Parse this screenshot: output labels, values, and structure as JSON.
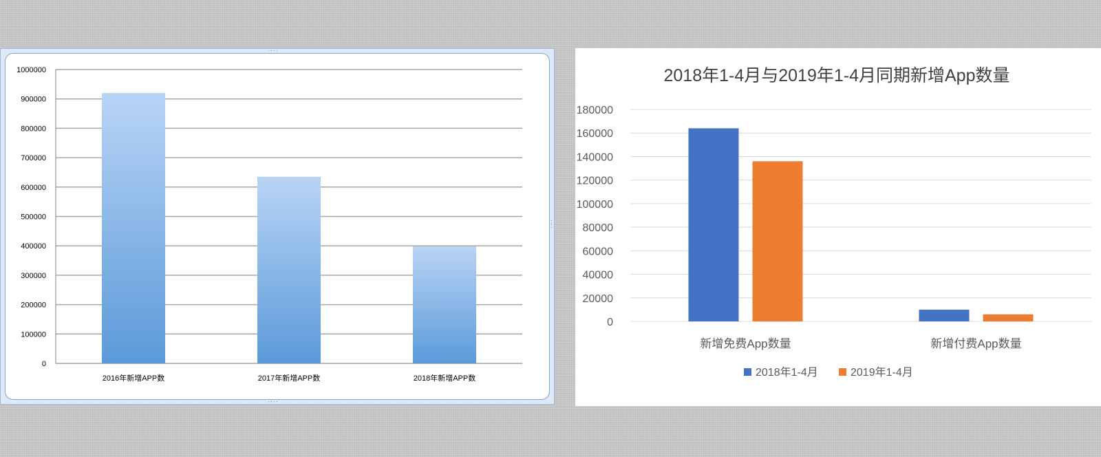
{
  "chart_data": [
    {
      "type": "bar",
      "title": "",
      "categories": [
        "2016年新增APP数",
        "2017年新增APP数",
        "2018年新增APP数"
      ],
      "values": [
        920000,
        635000,
        398000
      ],
      "ylim": [
        0,
        1000000
      ],
      "yticks": [
        "0",
        "100000",
        "200000",
        "300000",
        "400000",
        "500000",
        "600000",
        "700000",
        "800000",
        "900000",
        "1000000"
      ],
      "grid": true,
      "legend": "none",
      "colors": {
        "bar_top": "#b9d4f5",
        "bar_bottom": "#5b9ad9",
        "grid": "#a6a6a6"
      }
    },
    {
      "type": "bar",
      "title": "2018年1-4月与2019年1-4月同期新增App数量",
      "categories": [
        "新增免费App数量",
        "新增付费App数量"
      ],
      "series": [
        {
          "name": "2018年1-4月",
          "values": [
            164000,
            10000
          ],
          "color": "#4472c4"
        },
        {
          "name": "2019年1-4月",
          "values": [
            136000,
            6000
          ],
          "color": "#ed7d31"
        }
      ],
      "ylim": [
        0,
        180000
      ],
      "yticks": [
        "0",
        "20000",
        "40000",
        "60000",
        "80000",
        "100000",
        "120000",
        "140000",
        "160000",
        "180000"
      ],
      "grid": true,
      "legend": "bottom",
      "colors": {
        "grid": "#d9d9d9"
      }
    }
  ]
}
